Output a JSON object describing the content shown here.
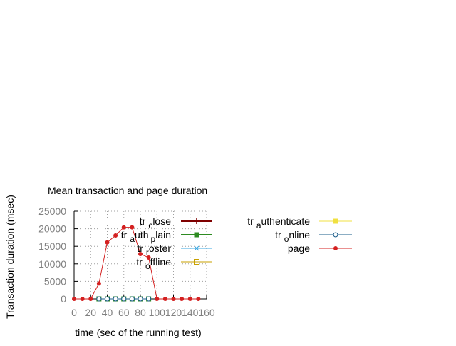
{
  "chart_data": {
    "type": "line",
    "title": "Mean transaction and page duration",
    "xlabel": "time (sec of the running test)",
    "ylabel": "Transaction duration (msec)",
    "xlim": [
      0,
      160
    ],
    "ylim": [
      0,
      25000
    ],
    "xticks": [
      0,
      20,
      40,
      60,
      80,
      100,
      120,
      140,
      160
    ],
    "yticks": [
      0,
      5000,
      10000,
      15000,
      20000,
      25000
    ],
    "grid": true,
    "legend_position": "right",
    "series": [
      {
        "name": "tr_close",
        "legend_parts": [
          "tr",
          "c",
          "lose"
        ],
        "color": "#7f0000",
        "marker": "plus",
        "x": [],
        "y": []
      },
      {
        "name": "tr_auth_plain",
        "legend_parts": [
          "tr",
          "a",
          "uth",
          "p",
          "lain"
        ],
        "color": "#2e8b22",
        "marker": "square-filled",
        "x": [
          30,
          40,
          50,
          60,
          70,
          80,
          90
        ],
        "y": [
          0,
          0,
          0,
          0,
          0,
          0,
          0
        ]
      },
      {
        "name": "tr_roster",
        "legend_parts": [
          "tr",
          "r",
          "oster"
        ],
        "color": "#3ba7e0",
        "marker": "asterisk",
        "x": [],
        "y": []
      },
      {
        "name": "tr_offline",
        "legend_parts": [
          "tr",
          "o",
          "ffline"
        ],
        "color": "#c8a000",
        "marker": "square-open",
        "x": [],
        "y": []
      },
      {
        "name": "tr_authenticate",
        "legend_parts": [
          "tr",
          "a",
          "uthenticate"
        ],
        "color": "#f0e040",
        "marker": "square-filled",
        "x": [],
        "y": []
      },
      {
        "name": "tr_online",
        "legend_parts": [
          "tr",
          "o",
          "nline"
        ],
        "color": "#1a5c8a",
        "marker": "circle-open",
        "x": [
          30,
          40,
          50,
          60,
          70,
          80,
          90
        ],
        "y": [
          0,
          0,
          0,
          0,
          0,
          0,
          0
        ]
      },
      {
        "name": "page",
        "legend_parts": [
          "page"
        ],
        "color": "#d42020",
        "marker": "circle-filled",
        "x": [
          0,
          10,
          20,
          30,
          40,
          50,
          60,
          70,
          80,
          90,
          100,
          110,
          120,
          130,
          140,
          150
        ],
        "y": [
          0,
          0,
          0,
          4400,
          16100,
          18100,
          20400,
          20400,
          12800,
          11800,
          0,
          0,
          0,
          0,
          0,
          0
        ]
      }
    ]
  }
}
